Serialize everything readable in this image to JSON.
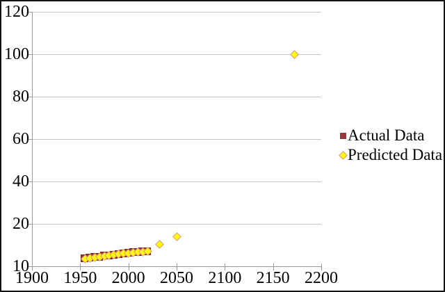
{
  "chart_data": {
    "type": "scatter",
    "title": "",
    "xlabel": "",
    "ylabel": "",
    "x_range": [
      1900,
      2200
    ],
    "x_ticks": [
      1900,
      1950,
      2000,
      2050,
      2100,
      2150,
      2200
    ],
    "y_ticks": [
      10,
      20,
      40,
      60,
      80,
      100,
      120
    ],
    "y_axis_note": "tick labels equally spaced from bottom (10) to top (120)",
    "grid": true,
    "legend_position": "right",
    "colors": {
      "background": "#ffffff",
      "frame_border": "#111111",
      "gridline": "#c6c6c6",
      "axis": "#9a9a9a",
      "actual_fill": "#9c3839",
      "actual_border": "#7c2523",
      "predicted_fill": "#ffff00",
      "predicted_border": "#e59191",
      "text": "#000000"
    },
    "series": [
      {
        "name": "Actual Data",
        "marker": "square",
        "fill": "#9c3839",
        "points": [
          [
            1955,
            11.8
          ],
          [
            1960,
            11.9
          ],
          [
            1965,
            12.1
          ],
          [
            1970,
            12.2
          ],
          [
            1975,
            12.4
          ],
          [
            1980,
            12.5
          ],
          [
            1985,
            12.7
          ],
          [
            1990,
            12.8
          ],
          [
            1995,
            13.0
          ],
          [
            2000,
            13.1
          ],
          [
            2005,
            13.2
          ],
          [
            2010,
            13.3
          ],
          [
            2015,
            13.4
          ],
          [
            2020,
            13.5
          ]
        ]
      },
      {
        "name": "Predicted Data",
        "marker": "diamond",
        "fill": "#ffff00",
        "points": [
          [
            1955,
            11.8
          ],
          [
            1960,
            11.9
          ],
          [
            1965,
            12.1
          ],
          [
            1970,
            12.2
          ],
          [
            1975,
            12.4
          ],
          [
            1980,
            12.5
          ],
          [
            1985,
            12.7
          ],
          [
            1990,
            12.8
          ],
          [
            1995,
            13.0
          ],
          [
            2000,
            13.1
          ],
          [
            2005,
            13.2
          ],
          [
            2010,
            13.3
          ],
          [
            2015,
            13.4
          ],
          [
            2020,
            13.5
          ],
          [
            2032,
            15.2
          ],
          [
            2050,
            16.9
          ],
          [
            2172,
            100
          ]
        ]
      }
    ]
  }
}
